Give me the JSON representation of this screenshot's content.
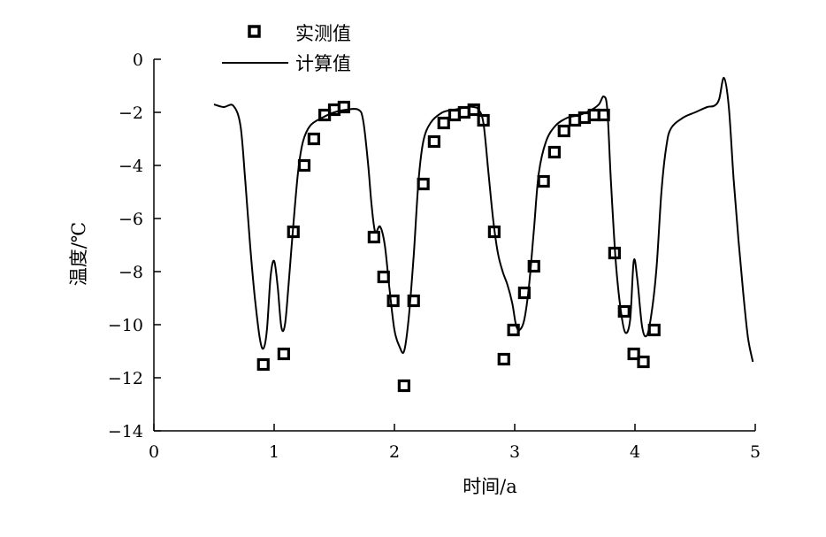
{
  "chart_data": {
    "type": "line",
    "xlabel": "时间/a",
    "ylabel": "温度/℃",
    "xlim": [
      0,
      5
    ],
    "ylim": [
      -14,
      0
    ],
    "xticks": [
      0,
      1,
      2,
      3,
      4,
      5
    ],
    "yticks": [
      0,
      -2,
      -4,
      -6,
      -8,
      -10,
      -12,
      -14
    ],
    "xtick_labels": [
      "0",
      "1",
      "2",
      "3",
      "4",
      "5"
    ],
    "ytick_labels": [
      "0",
      "−2",
      "−4",
      "−6",
      "−8",
      "−10",
      "−12",
      "−14"
    ],
    "grid": false,
    "legend_position": "top-left",
    "series": [
      {
        "name": "实测值",
        "kind": "scatter",
        "marker": "open-square",
        "x": [
          0.91,
          1.08,
          1.16,
          1.25,
          1.33,
          1.42,
          1.5,
          1.58,
          1.83,
          1.91,
          1.99,
          2.08,
          2.16,
          2.24,
          2.33,
          2.41,
          2.5,
          2.58,
          2.66,
          2.74,
          2.83,
          2.91,
          2.99,
          3.08,
          3.16,
          3.24,
          3.33,
          3.41,
          3.5,
          3.58,
          3.66,
          3.74,
          3.83,
          3.91,
          3.99,
          4.07,
          4.16
        ],
        "y": [
          -11.5,
          -11.1,
          -6.5,
          -4.0,
          -3.0,
          -2.1,
          -1.9,
          -1.8,
          -6.7,
          -8.2,
          -9.1,
          -12.3,
          -9.1,
          -4.7,
          -3.1,
          -2.4,
          -2.1,
          -2.0,
          -1.9,
          -2.3,
          -6.5,
          -11.3,
          -10.2,
          -8.8,
          -7.8,
          -4.6,
          -3.5,
          -2.7,
          -2.3,
          -2.2,
          -2.1,
          -2.1,
          -7.3,
          -9.5,
          -11.1,
          -11.4,
          -10.2
        ]
      },
      {
        "name": "计算值",
        "kind": "line",
        "x": [
          0.5,
          0.58,
          0.66,
          0.72,
          0.76,
          0.8,
          0.84,
          0.88,
          0.91,
          0.94,
          0.97,
          1.0,
          1.03,
          1.06,
          1.09,
          1.12,
          1.16,
          1.2,
          1.24,
          1.3,
          1.4,
          1.5,
          1.6,
          1.7,
          1.74,
          1.78,
          1.81,
          1.84,
          1.88,
          1.92,
          1.96,
          2.0,
          2.04,
          2.08,
          2.12,
          2.16,
          2.2,
          2.24,
          2.3,
          2.4,
          2.5,
          2.6,
          2.66,
          2.7,
          2.74,
          2.78,
          2.82,
          2.86,
          2.9,
          2.94,
          2.98,
          3.01,
          3.04,
          3.08,
          3.12,
          3.16,
          3.2,
          3.26,
          3.34,
          3.44,
          3.54,
          3.64,
          3.7,
          3.74,
          3.77,
          3.8,
          3.84,
          3.88,
          3.92,
          3.96,
          3.99,
          4.02,
          4.06,
          4.1,
          4.14,
          4.18,
          4.22,
          4.26,
          4.3,
          4.4,
          4.5,
          4.6,
          4.66,
          4.7,
          4.74,
          4.78,
          4.82,
          4.86,
          4.9,
          4.94,
          4.98
        ],
        "y": [
          -1.7,
          -1.8,
          -1.75,
          -2.5,
          -4.6,
          -7.0,
          -9.0,
          -10.5,
          -10.9,
          -10.2,
          -8.2,
          -7.6,
          -8.6,
          -10.1,
          -10.0,
          -8.5,
          -6.2,
          -4.2,
          -3.1,
          -2.5,
          -2.2,
          -2.0,
          -1.9,
          -1.9,
          -2.3,
          -3.9,
          -5.5,
          -6.5,
          -6.3,
          -7.0,
          -8.7,
          -10.2,
          -10.8,
          -11.0,
          -9.7,
          -7.4,
          -4.6,
          -3.1,
          -2.4,
          -2.0,
          -1.9,
          -1.8,
          -1.8,
          -1.9,
          -2.4,
          -4.2,
          -6.0,
          -7.3,
          -8.0,
          -8.5,
          -9.2,
          -10.0,
          -10.2,
          -9.8,
          -8.5,
          -6.4,
          -4.3,
          -3.1,
          -2.5,
          -2.2,
          -2.1,
          -1.9,
          -1.7,
          -1.4,
          -1.9,
          -4.6,
          -7.6,
          -9.4,
          -10.3,
          -9.8,
          -7.6,
          -8.3,
          -10.1,
          -10.4,
          -9.5,
          -7.8,
          -5.0,
          -3.3,
          -2.6,
          -2.2,
          -2.0,
          -1.8,
          -1.75,
          -1.5,
          -0.7,
          -1.8,
          -4.5,
          -6.8,
          -8.8,
          -10.5,
          -11.4
        ]
      }
    ]
  }
}
